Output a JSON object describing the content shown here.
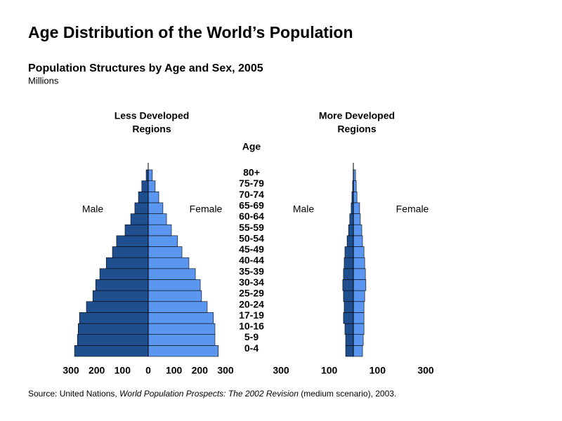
{
  "header": {
    "title": "Age Distribution of the World’s Population",
    "subtitle": "Population Structures by Age and Sex, 2005",
    "units": "Millions"
  },
  "age_axis": {
    "label": "Age",
    "categories": [
      "0-4",
      "5-9",
      "10-16",
      "17-19",
      "20-24",
      "25-29",
      "30-34",
      "35-39",
      "40-44",
      "45-49",
      "50-54",
      "55-59",
      "60-64",
      "65-69",
      "70-74",
      "75-79",
      "80+"
    ]
  },
  "chart_data": [
    {
      "type": "pyramid",
      "title_lines": [
        "Less Developed",
        "Regions"
      ],
      "xlim": [
        0,
        300
      ],
      "male_xticks": [
        300,
        200,
        100
      ],
      "female_xticks": [
        0,
        100,
        200,
        300
      ],
      "series": [
        {
          "name": "Male",
          "color": "#1f4f8e",
          "values": [
            286,
            275,
            272,
            267,
            240,
            215,
            204,
            188,
            163,
            139,
            123,
            90,
            68,
            52,
            38,
            25,
            8
          ]
        },
        {
          "name": "Female",
          "color": "#5b97f0",
          "values": [
            272,
            259,
            259,
            253,
            229,
            207,
            202,
            183,
            158,
            131,
            114,
            90,
            71,
            57,
            41,
            27,
            16
          ]
        }
      ]
    },
    {
      "type": "pyramid",
      "title_lines": [
        "More Developed",
        "Regions"
      ],
      "xlim": [
        0,
        300
      ],
      "male_xticks": [
        300,
        100
      ],
      "female_xticks": [
        100,
        300
      ],
      "series": [
        {
          "name": "Male",
          "color": "#1f4f8e",
          "values": [
            32,
            32,
            35,
            41,
            38,
            41,
            44,
            41,
            38,
            35,
            26,
            20,
            15,
            9,
            6,
            3,
            1
          ]
        },
        {
          "name": "Female",
          "color": "#5b97f0",
          "values": [
            38,
            41,
            44,
            44,
            44,
            47,
            52,
            50,
            47,
            44,
            38,
            35,
            29,
            26,
            15,
            12,
            9
          ]
        }
      ]
    }
  ],
  "source": [
    "Source: United Nations, ",
    "World Population Prospects: The 2002 Revision",
    " (medium scenario), 2003."
  ]
}
